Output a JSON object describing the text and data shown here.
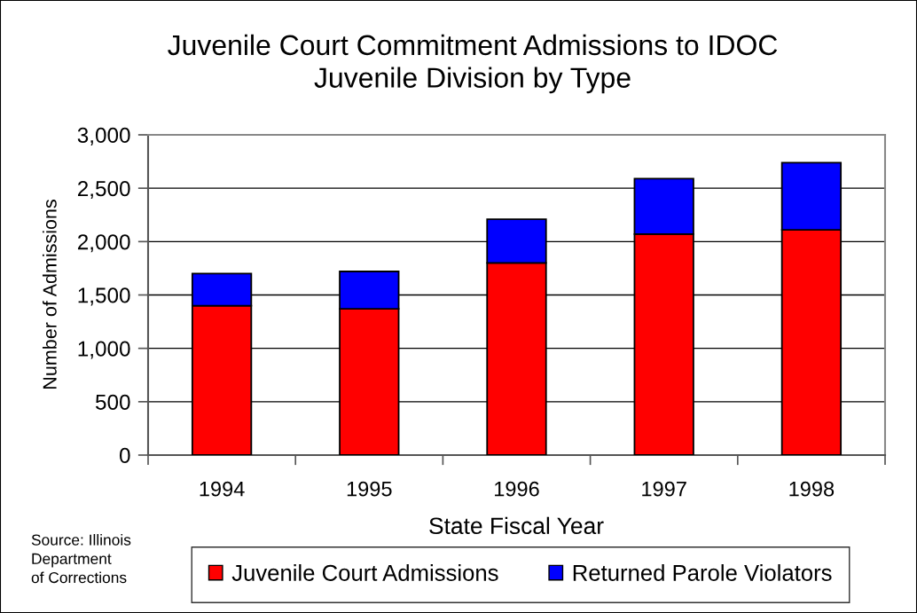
{
  "chart_data": {
    "type": "bar",
    "stacked": true,
    "title": "Juvenile Court Commitment Admissions to IDOC\nJuvenile Division by Type",
    "xlabel": "State Fiscal Year",
    "ylabel": "Number of Admissions",
    "categories": [
      "1994",
      "1995",
      "1996",
      "1997",
      "1998"
    ],
    "series": [
      {
        "name": "Juvenile Court Admissions",
        "color": "#ff0000",
        "values": [
          1400,
          1370,
          1800,
          2070,
          2110
        ]
      },
      {
        "name": "Returned Parole Violators",
        "color": "#0000ff",
        "values": [
          300,
          350,
          410,
          520,
          630
        ]
      }
    ],
    "ylim": [
      0,
      3000
    ],
    "yticks": [
      0,
      500,
      {
        "value": 1000,
        "label": "1,000"
      },
      {
        "value": 1500,
        "label": "1,500"
      },
      {
        "value": 2000,
        "label": "2,000"
      },
      {
        "value": 2500,
        "label": "2,500"
      },
      {
        "value": 3000,
        "label": "3,000"
      }
    ],
    "grid": "y",
    "legend": "bottom",
    "annotations": [
      "Source: Illinois\nDepartment\nof Corrections"
    ]
  }
}
